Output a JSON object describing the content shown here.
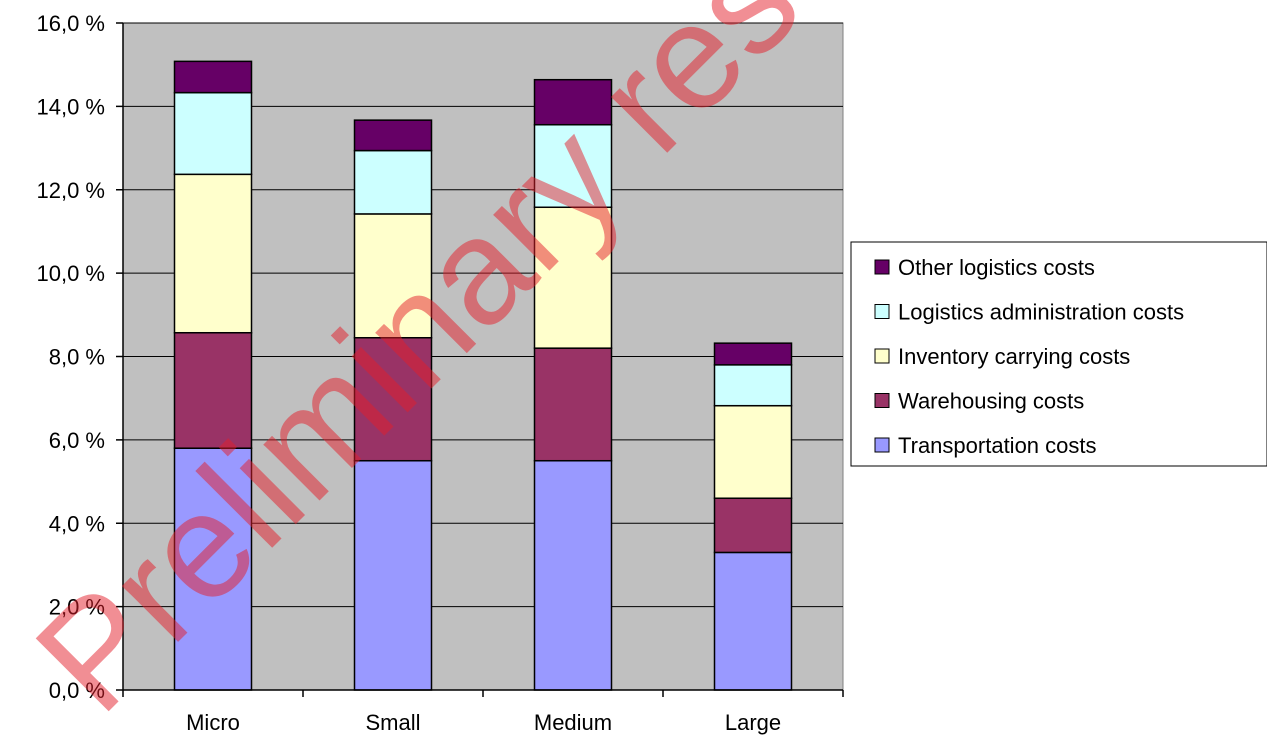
{
  "chart_data": {
    "type": "bar",
    "stacked": true,
    "categories": [
      "Micro",
      "Small",
      "Medium",
      "Large"
    ],
    "series": [
      {
        "name": "Transportation costs",
        "values": [
          5.8,
          5.5,
          5.5,
          3.3
        ],
        "color": "#9999ff"
      },
      {
        "name": "Warehousing costs",
        "values": [
          2.77,
          2.95,
          2.7,
          1.3
        ],
        "color": "#993366"
      },
      {
        "name": "Inventory carrying costs",
        "values": [
          3.8,
          2.97,
          3.38,
          2.22
        ],
        "color": "#ffffcc"
      },
      {
        "name": "Logistics administration costs",
        "values": [
          1.96,
          1.52,
          1.98,
          0.98
        ],
        "color": "#ccffff"
      },
      {
        "name": "Other logistics costs",
        "values": [
          0.75,
          0.73,
          1.08,
          0.52
        ],
        "color": "#660066"
      }
    ],
    "ylim": [
      0,
      16
    ],
    "yticks": [
      0,
      2,
      4,
      6,
      8,
      10,
      12,
      14,
      16
    ],
    "ytick_labels": [
      "0,0 %",
      "2,0 %",
      "4,0 %",
      "6,0 %",
      "8,0 %",
      "10,0 %",
      "12,0 %",
      "14,0 %",
      "16,0 %"
    ],
    "grid": true,
    "plot_background": "#c0c0c0",
    "legend_position": "right",
    "watermark": "Preliminary results"
  }
}
